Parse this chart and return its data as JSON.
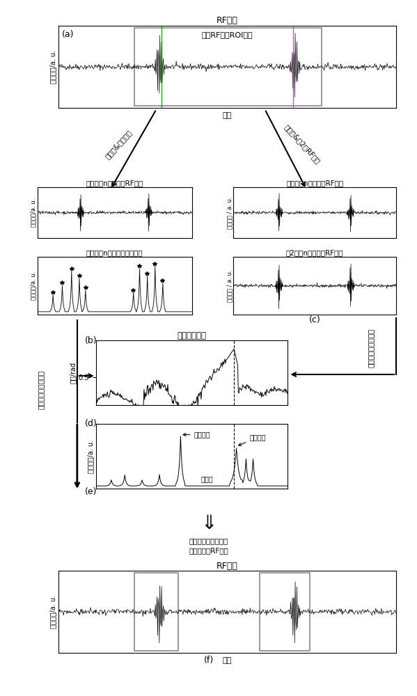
{
  "title_a": "RF信号",
  "label_a": "(a)",
  "roi_label": "血管RF信号ROI区域",
  "xlabel_a": "深度",
  "ylabel_a": "回波幅度/a. u.",
  "arrow_left": "取包络&峰值检测",
  "arrow_right": "初始帧&第2帧RF信号",
  "title_b1": "初始帧第n条扫描线RF信号",
  "ylabel_b1": "回波幅度/a. u.",
  "title_b2": "初始帧第n条扫描线包络信号",
  "ylabel_b2": "回波幅度/a. u.",
  "title_c1": "初始帧第n条扫描线RF信号",
  "ylabel_c1": "回波幅度 / a. u.",
  "title_c2": "第2帧第n条扫描线RF信号",
  "label_c": "(c)",
  "ylabel_c2": "回波幅度 / a. u.",
  "title_d": "血管相移信号",
  "label_b": "(b)",
  "ylabel_d": "相移/rad",
  "label_d": "(d)",
  "ylabel_e": "回波幅度/a. u.",
  "label_e": "(e)",
  "annot_front": "血管前壁",
  "annot_back": "血管后壁",
  "annot_cavity": "血管腔",
  "left_label": "检测局部最大峰值点",
  "arrow_down_label1": "根据血管壁位置提取",
  "arrow_down_label2": "血管前后壁RF信号",
  "title_f": "RF信号",
  "xlabel_f": "深度",
  "ylabel_f": "回波幅度/a. u.",
  "label_f": "(f)",
  "corr_label": "一维自相关相移估计"
}
